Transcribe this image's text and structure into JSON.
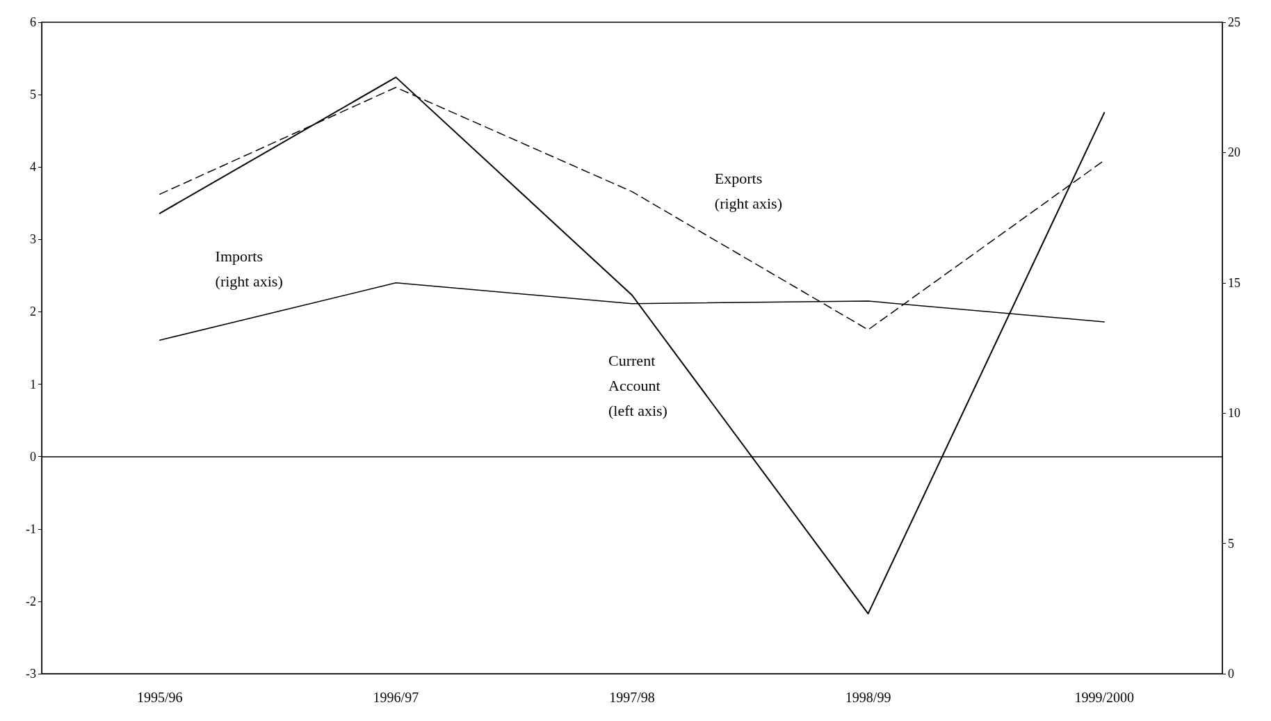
{
  "chart_data": {
    "type": "line",
    "categories": [
      "1995/96",
      "1996/97",
      "1997/98",
      "1998/99",
      "1999/2000"
    ],
    "series": [
      {
        "name": "Current\nAccount\n(left axis)",
        "color": "#000000",
        "line_style": "solid",
        "values": [
          3.36,
          5.24,
          2.23,
          -2.17,
          4.75
        ]
      },
      {
        "name": "Exports\n(right axis)",
        "color": "#000000",
        "line_style": "dashed",
        "axis": "y2",
        "values": [
          18.4,
          22.5,
          18.5,
          13.2,
          19.7
        ]
      },
      {
        "name": "Imports\n(right axis)",
        "color": "#000000",
        "line_style": "solid",
        "axis": "y2",
        "values": [
          12.8,
          15.0,
          14.2,
          14.3,
          13.5
        ]
      }
    ],
    "ylim": [
      -3,
      6
    ],
    "yticks": [
      -3,
      -2,
      -1,
      0,
      1,
      2,
      3,
      4,
      5,
      6
    ],
    "y2lim": [
      0,
      25
    ],
    "y2ticks": [
      0,
      5,
      10,
      15,
      20,
      25
    ],
    "ref_lines": [
      {
        "axis": "y",
        "value": 0,
        "color": "#000000"
      }
    ],
    "grid": false,
    "legend": false,
    "marker": "none"
  }
}
